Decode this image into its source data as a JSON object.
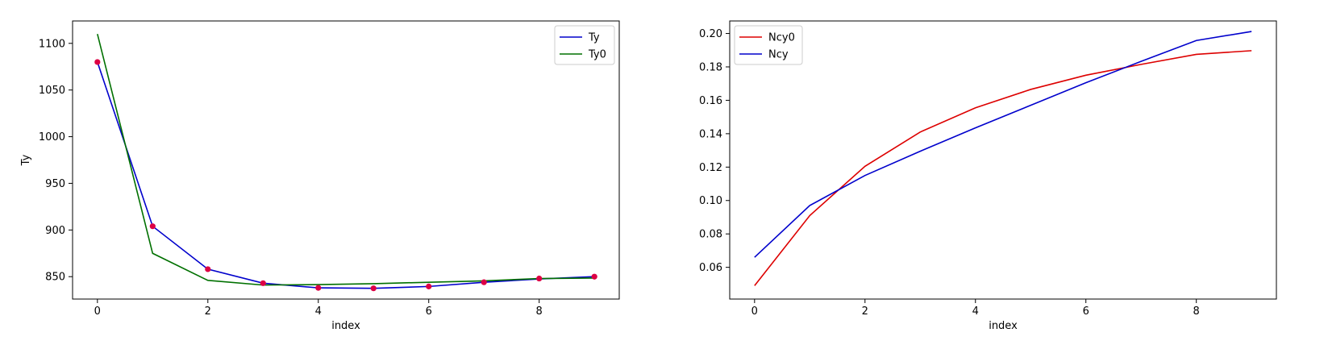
{
  "chart_data": [
    {
      "type": "line",
      "title": "",
      "xlabel": "index",
      "ylabel": "Ty",
      "xlim": [
        -0.45,
        9.45
      ],
      "ylim": [
        826,
        1124
      ],
      "xticks": [
        0,
        2,
        4,
        6,
        8
      ],
      "yticks": [
        850,
        900,
        950,
        1000,
        1050,
        1100
      ],
      "grid": false,
      "legend": "top-right",
      "x": [
        0,
        1,
        2,
        3,
        4,
        5,
        6,
        7,
        8,
        9
      ],
      "series": [
        {
          "name": "Ty",
          "color": "#0000cc",
          "values": [
            1080,
            904,
            858,
            843,
            838,
            837.5,
            839.5,
            844,
            847.5,
            850
          ],
          "in_legend": true
        },
        {
          "name": "Ty0",
          "color": "#007000",
          "values": [
            1110,
            875,
            846,
            841,
            841.5,
            842.5,
            844,
            845.5,
            848,
            848.5
          ],
          "in_legend": true
        }
      ],
      "scatter": {
        "color": "#dd0044",
        "values": [
          1080,
          904,
          858,
          843,
          838,
          837.5,
          839.5,
          844,
          848,
          850
        ]
      }
    },
    {
      "type": "line",
      "title": "",
      "xlabel": "index",
      "ylabel": "",
      "xlim": [
        -0.45,
        9.45
      ],
      "ylim": [
        0.041,
        0.2075
      ],
      "xticks": [
        0,
        2,
        4,
        6,
        8
      ],
      "yticks": [
        0.06,
        0.08,
        0.1,
        0.12,
        0.14,
        0.16,
        0.18,
        0.2
      ],
      "ytick_labels": [
        "0.06",
        "0.08",
        "0.10",
        "0.12",
        "0.14",
        "0.16",
        "0.18",
        "0.20"
      ],
      "grid": false,
      "legend": "top-left",
      "x": [
        0,
        1,
        2,
        3,
        4,
        5,
        6,
        7,
        8,
        9
      ],
      "series": [
        {
          "name": "Ncy0",
          "color": "#dd0000",
          "values": [
            0.049,
            0.091,
            0.1205,
            0.141,
            0.1555,
            0.1665,
            0.175,
            0.1815,
            0.1875,
            0.1897
          ]
        },
        {
          "name": "Ncy",
          "color": "#0000cc",
          "values": [
            0.066,
            0.097,
            0.115,
            0.1295,
            0.1435,
            0.157,
            0.1705,
            0.1833,
            0.1958,
            0.2012
          ]
        }
      ]
    }
  ]
}
